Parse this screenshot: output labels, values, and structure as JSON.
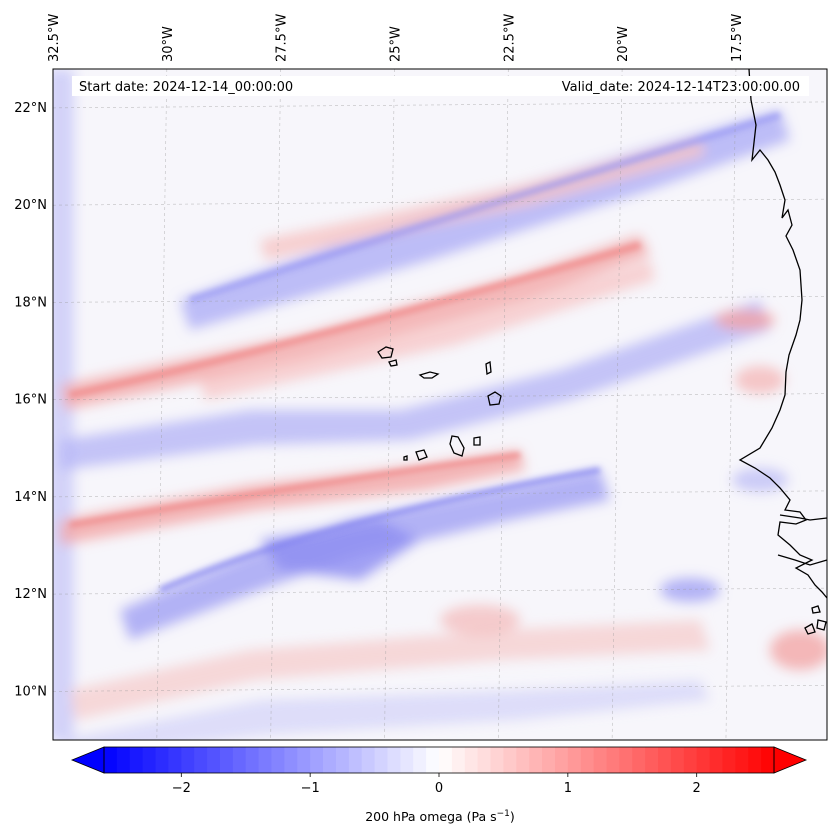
{
  "map": {
    "start_date": "Start date: 2024-12-14_00:00:00",
    "valid_date": "Valid_date: 2024-12-14T23:00:00.00",
    "lon_labels": [
      "32.5°W",
      "30°W",
      "27.5°W",
      "25°W",
      "22.5°W",
      "20°W",
      "17.5°W"
    ],
    "lat_labels": [
      "22°N",
      "20°N",
      "18°N",
      "16°N",
      "14°N",
      "12°N",
      "10°N"
    ],
    "lon_range": [
      -32.5,
      -15.5
    ],
    "lat_range": [
      9.0,
      22.8
    ],
    "gridlines": true
  },
  "colorbar": {
    "label": "200 hPa omega (Pa s",
    "label_exp": "−1",
    "label_close": ")",
    "ticks": [
      "−2",
      "−1",
      "0",
      "1",
      "2"
    ],
    "range": [
      -2.6,
      2.6
    ],
    "extend": "both",
    "colormap": "bwr",
    "color_min": "#0000ff",
    "color_mid": "#ffffff",
    "color_max": "#ff0000"
  }
}
